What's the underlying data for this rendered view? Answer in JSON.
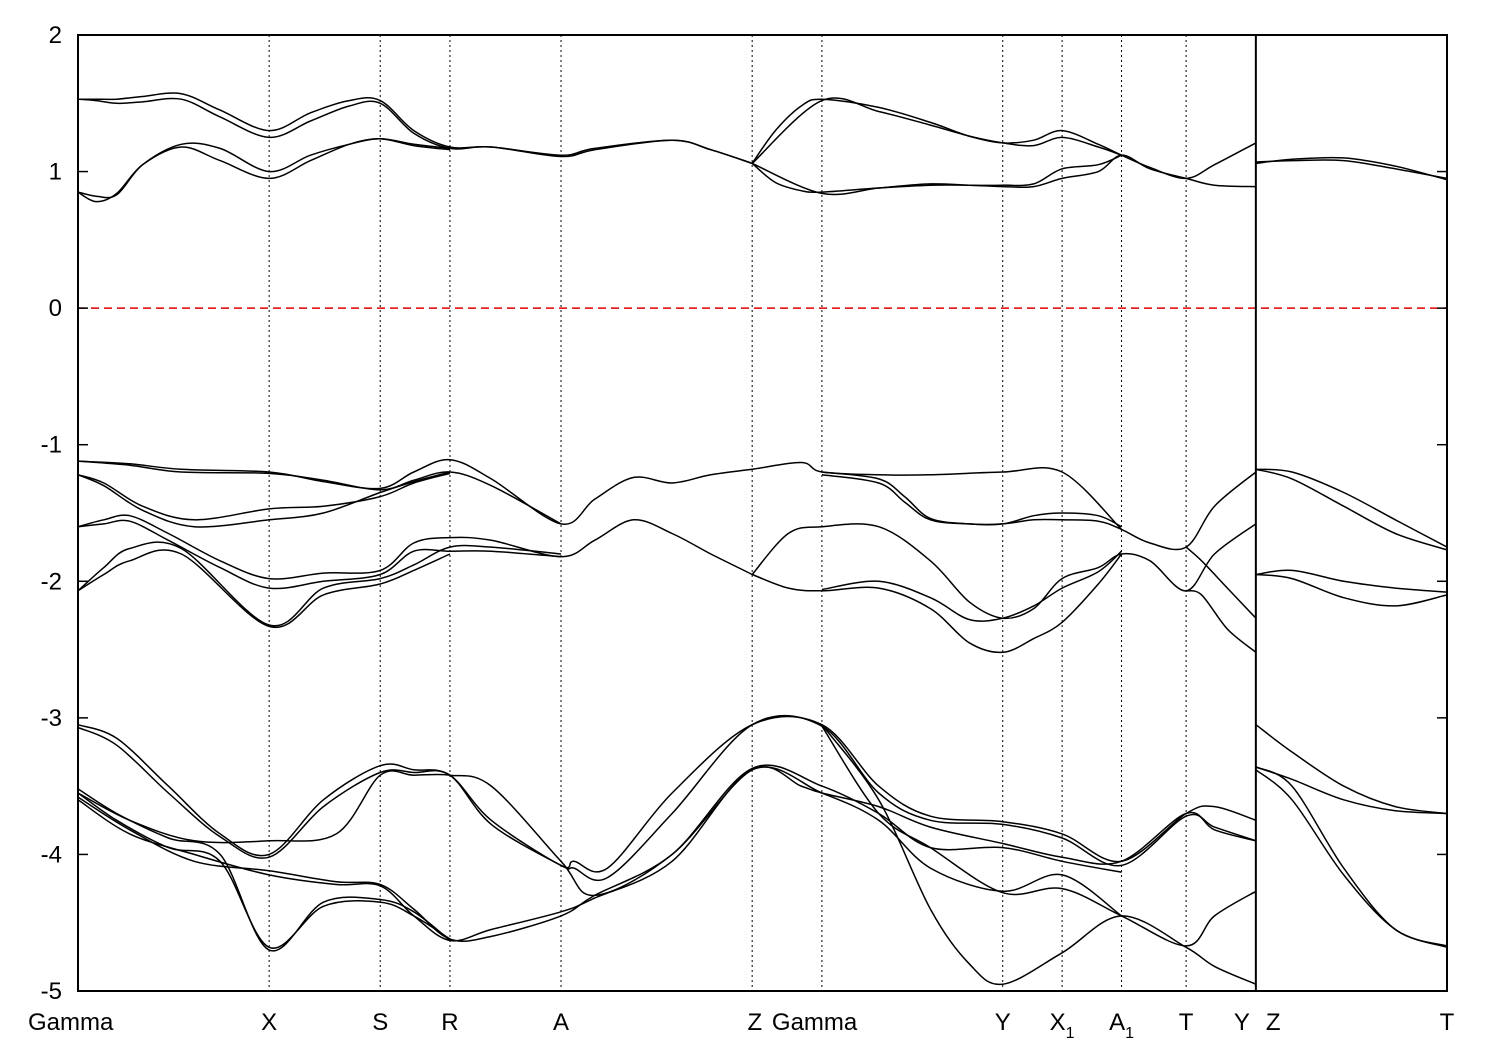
{
  "chart_data": {
    "type": "line",
    "title": "",
    "xlabel": "",
    "ylabel": "",
    "ylim": [
      -5,
      2
    ],
    "y_ticks": [
      "2",
      "1",
      "0",
      "-1",
      "-2",
      "-3",
      "-4",
      "-5"
    ],
    "x_range": [
      0,
      5.3
    ],
    "reference_line": {
      "y": 0,
      "color": "#e00000",
      "style": "dashed"
    },
    "kpoints": [
      {
        "label": "Gamma",
        "sub": "",
        "x": 0.0
      },
      {
        "label": "X",
        "sub": "",
        "x": 0.74
      },
      {
        "label": "S",
        "sub": "",
        "x": 1.17
      },
      {
        "label": "R",
        "sub": "",
        "x": 1.44
      },
      {
        "label": "A",
        "sub": "",
        "x": 1.87
      },
      {
        "label": "Z",
        "sub": "",
        "x": 2.61
      },
      {
        "label": "Gamma",
        "sub": "",
        "x": 2.88
      },
      {
        "label": "Y",
        "sub": "",
        "x": 3.58
      },
      {
        "label": "X",
        "sub": "1",
        "x": 3.81
      },
      {
        "label": "A",
        "sub": "1",
        "x": 4.04
      },
      {
        "label": "T",
        "sub": "",
        "x": 4.29
      },
      {
        "label": "Y",
        "sub": "",
        "x": 4.56
      },
      {
        "label": "T",
        "sub": "",
        "x": 5.3
      }
    ],
    "break_at_x": 4.56,
    "series": [
      {
        "x": [
          0,
          0.07,
          0.15,
          0.25,
          0.4,
          0.55,
          0.74,
          0.9,
          1.05,
          1.17,
          1.3,
          1.44,
          1.6,
          1.87,
          2.0,
          2.3,
          2.45,
          2.61
        ],
        "y": [
          1.53,
          1.53,
          1.53,
          1.55,
          1.57,
          1.45,
          1.3,
          1.43,
          1.52,
          1.52,
          1.3,
          1.18,
          1.18,
          1.12,
          1.17,
          1.23,
          1.16,
          1.06
        ]
      },
      {
        "x": [
          0,
          0.07,
          0.15,
          0.25,
          0.4,
          0.55,
          0.74,
          0.9,
          1.05,
          1.17,
          1.3,
          1.44,
          1.6,
          1.87,
          2.0,
          2.3,
          2.45,
          2.61
        ],
        "y": [
          1.53,
          1.52,
          1.5,
          1.51,
          1.53,
          1.4,
          1.25,
          1.37,
          1.48,
          1.5,
          1.28,
          1.17,
          1.18,
          1.11,
          1.16,
          1.23,
          1.16,
          1.06
        ]
      },
      {
        "x": [
          0,
          0.07,
          0.15,
          0.25,
          0.4,
          0.55,
          0.74,
          0.9,
          1.05,
          1.17,
          1.3,
          1.44
        ],
        "y": [
          0.85,
          0.82,
          0.83,
          1.05,
          1.2,
          1.17,
          1.0,
          1.12,
          1.2,
          1.24,
          1.2,
          1.17
        ]
      },
      {
        "x": [
          0,
          0.07,
          0.15,
          0.25,
          0.4,
          0.55,
          0.74,
          0.9,
          1.05,
          1.17,
          1.3,
          1.44
        ],
        "y": [
          0.85,
          0.78,
          0.84,
          1.05,
          1.18,
          1.08,
          0.95,
          1.08,
          1.2,
          1.24,
          1.19,
          1.16
        ]
      },
      {
        "x": [
          2.61,
          2.7,
          2.8,
          2.88,
          3.1,
          3.3,
          3.45,
          3.58,
          3.7,
          3.81,
          3.95,
          4.04,
          4.15,
          4.29,
          4.4,
          4.56
        ],
        "y": [
          1.06,
          1.3,
          1.48,
          1.53,
          1.47,
          1.36,
          1.26,
          1.21,
          1.23,
          1.3,
          1.2,
          1.12,
          1.03,
          0.95,
          1.05,
          1.21
        ]
      },
      {
        "x": [
          2.61,
          2.7,
          2.8,
          2.88,
          3.1,
          3.3,
          3.45,
          3.58,
          3.7,
          3.81,
          3.95,
          4.04,
          4.15,
          4.29,
          4.4,
          4.56
        ],
        "y": [
          1.06,
          0.92,
          0.86,
          0.85,
          0.88,
          0.9,
          0.9,
          0.89,
          0.89,
          0.95,
          1.0,
          1.12,
          1.02,
          0.95,
          0.9,
          0.89
        ]
      },
      {
        "x": [
          2.61,
          2.88,
          3.1,
          3.3,
          3.45,
          3.58,
          3.7,
          3.81,
          3.95,
          4.04
        ],
        "y": [
          1.06,
          0.84,
          0.88,
          0.91,
          0.9,
          0.9,
          0.91,
          1.02,
          1.05,
          1.12
        ]
      },
      {
        "x": [
          2.61,
          2.88,
          3.1,
          3.3,
          3.45,
          3.58,
          3.7,
          3.81,
          3.95,
          4.04
        ],
        "y": [
          1.06,
          1.52,
          1.44,
          1.34,
          1.26,
          1.21,
          1.19,
          1.25,
          1.18,
          1.12
        ]
      },
      {
        "x": [
          4.56,
          4.7,
          4.9,
          5.1,
          5.3
        ],
        "y": [
          1.07,
          1.08,
          1.08,
          1.02,
          0.95
        ]
      },
      {
        "x": [
          4.56,
          4.7,
          4.9,
          5.1,
          5.3
        ],
        "y": [
          1.06,
          1.09,
          1.1,
          1.04,
          0.94
        ]
      },
      {
        "x": [
          0,
          0.2,
          0.4,
          0.74,
          0.95,
          1.17,
          1.3,
          1.44,
          1.6,
          1.87,
          2.0,
          2.15,
          2.3,
          2.45,
          2.61,
          2.8,
          2.88,
          3.1,
          3.3,
          3.58,
          3.81,
          4.04
        ],
        "y": [
          -1.12,
          -1.14,
          -1.18,
          -1.2,
          -1.27,
          -1.32,
          -1.2,
          -1.11,
          -1.25,
          -1.58,
          -1.4,
          -1.24,
          -1.28,
          -1.22,
          -1.18,
          -1.13,
          -1.2,
          -1.22,
          -1.22,
          -1.2,
          -1.2,
          -1.62
        ]
      },
      {
        "x": [
          0,
          0.2,
          0.4,
          0.74,
          0.95,
          1.17,
          1.3,
          1.44,
          1.6,
          1.87
        ],
        "y": [
          -1.12,
          -1.15,
          -1.2,
          -1.21,
          -1.26,
          -1.33,
          -1.26,
          -1.2,
          -1.3,
          -1.58
        ]
      },
      {
        "x": [
          0,
          0.1,
          0.25,
          0.45,
          0.74,
          0.95,
          1.17,
          1.3,
          1.44
        ],
        "y": [
          -1.22,
          -1.3,
          -1.48,
          -1.6,
          -1.55,
          -1.5,
          -1.35,
          -1.27,
          -1.2
        ]
      },
      {
        "x": [
          0,
          0.1,
          0.25,
          0.45,
          0.74,
          0.95,
          1.17,
          1.3,
          1.44
        ],
        "y": [
          -1.22,
          -1.28,
          -1.45,
          -1.55,
          -1.47,
          -1.45,
          -1.38,
          -1.28,
          -1.21
        ]
      },
      {
        "x": [
          0,
          0.1,
          0.2,
          0.35,
          0.55,
          0.74,
          0.95,
          1.17,
          1.3,
          1.44,
          1.6,
          1.87,
          2.0,
          2.15,
          2.3,
          2.45,
          2.61
        ],
        "y": [
          -1.6,
          -1.55,
          -1.52,
          -1.65,
          -1.85,
          -1.98,
          -1.94,
          -1.92,
          -1.72,
          -1.68,
          -1.7,
          -1.82,
          -1.7,
          -1.55,
          -1.65,
          -1.8,
          -1.95
        ]
      },
      {
        "x": [
          0,
          0.1,
          0.2,
          0.35,
          0.55,
          0.74,
          0.95,
          1.17,
          1.3,
          1.44,
          1.6,
          1.87
        ],
        "y": [
          -1.6,
          -1.58,
          -1.56,
          -1.7,
          -1.9,
          -2.05,
          -2.0,
          -1.95,
          -1.78,
          -1.78,
          -1.78,
          -1.82
        ]
      },
      {
        "x": [
          0,
          0.1,
          0.2,
          0.4,
          0.74,
          0.95,
          1.17,
          1.3,
          1.44,
          1.6,
          1.87
        ],
        "y": [
          -2.07,
          -1.9,
          -1.76,
          -1.76,
          -2.32,
          -2.05,
          -1.98,
          -1.88,
          -1.75,
          -1.75,
          -1.8
        ]
      },
      {
        "x": [
          0,
          0.1,
          0.2,
          0.4,
          0.74,
          0.95,
          1.17,
          1.3,
          1.44
        ],
        "y": [
          -2.07,
          -1.95,
          -1.85,
          -1.8,
          -2.33,
          -2.1,
          -2.02,
          -1.92,
          -1.8
        ]
      },
      {
        "x": [
          2.61,
          2.75,
          2.88,
          3.1,
          3.3,
          3.45,
          3.58,
          3.7,
          3.81,
          3.95,
          4.04,
          4.15,
          4.29,
          4.4,
          4.56
        ],
        "y": [
          -1.95,
          -1.65,
          -1.6,
          -1.6,
          -1.85,
          -2.15,
          -2.27,
          -2.2,
          -1.98,
          -1.9,
          -1.8,
          -1.85,
          -2.07,
          -1.8,
          -1.58
        ]
      },
      {
        "x": [
          2.61,
          2.75,
          2.88,
          3.1,
          3.3,
          3.45,
          3.58,
          3.7,
          3.81,
          3.95,
          4.04
        ],
        "y": [
          -1.95,
          -2.05,
          -2.07,
          -2.05,
          -2.2,
          -2.45,
          -2.52,
          -2.42,
          -2.3,
          -2.02,
          -1.8
        ]
      },
      {
        "x": [
          2.88,
          3.1,
          3.3,
          3.45,
          3.58,
          3.7,
          3.81,
          3.95,
          4.04
        ],
        "y": [
          -2.06,
          -2.0,
          -2.12,
          -2.28,
          -2.27,
          -2.18,
          -2.05,
          -1.93,
          -1.78
        ]
      },
      {
        "x": [
          2.88,
          3.1,
          3.2,
          3.3,
          3.45,
          3.58,
          3.7,
          3.81,
          3.95,
          4.04
        ],
        "y": [
          -1.22,
          -1.28,
          -1.42,
          -1.55,
          -1.58,
          -1.58,
          -1.52,
          -1.5,
          -1.52,
          -1.6
        ]
      },
      {
        "x": [
          2.88,
          3.1,
          3.2,
          3.3,
          3.45,
          3.58,
          3.7,
          3.81,
          3.95,
          4.04,
          4.15,
          4.29,
          4.4,
          4.56
        ],
        "y": [
          -1.2,
          -1.25,
          -1.38,
          -1.54,
          -1.58,
          -1.58,
          -1.55,
          -1.55,
          -1.56,
          -1.62,
          -1.72,
          -1.75,
          -1.45,
          -1.2
        ]
      },
      {
        "x": [
          4.29,
          4.35,
          4.45,
          4.56
        ],
        "y": [
          -1.75,
          -1.85,
          -2.05,
          -2.27
        ]
      },
      {
        "x": [
          4.29,
          4.35,
          4.45,
          4.56
        ],
        "y": [
          -2.07,
          -2.1,
          -2.35,
          -2.52
        ]
      },
      {
        "x": [
          4.56,
          4.7,
          4.9,
          5.1,
          5.3
        ],
        "y": [
          -1.18,
          -1.25,
          -1.45,
          -1.65,
          -1.77
        ]
      },
      {
        "x": [
          4.56,
          4.7,
          4.9,
          5.1,
          5.3
        ],
        "y": [
          -1.18,
          -1.2,
          -1.35,
          -1.55,
          -1.75
        ]
      },
      {
        "x": [
          4.56,
          4.7,
          4.9,
          5.1,
          5.3
        ],
        "y": [
          -1.95,
          -1.92,
          -2.0,
          -2.05,
          -2.08
        ]
      },
      {
        "x": [
          4.56,
          4.7,
          4.9,
          5.1,
          5.3
        ],
        "y": [
          -1.95,
          -1.98,
          -2.12,
          -2.18,
          -2.1
        ]
      },
      {
        "x": [
          0,
          0.15,
          0.35,
          0.55,
          0.74,
          0.95,
          1.17,
          1.3,
          1.44,
          1.6,
          1.87,
          1.92,
          2.05,
          2.3,
          2.61,
          2.88,
          3.1,
          3.3,
          3.58,
          3.81,
          4.04,
          4.29,
          4.4,
          4.56
        ],
        "y": [
          -3.05,
          -3.15,
          -3.5,
          -3.85,
          -4.0,
          -3.6,
          -3.35,
          -3.38,
          -3.42,
          -3.75,
          -4.08,
          -4.05,
          -4.1,
          -3.55,
          -3.05,
          -3.05,
          -3.5,
          -3.72,
          -3.76,
          -3.85,
          -4.05,
          -3.7,
          -3.65,
          -3.75
        ]
      },
      {
        "x": [
          0,
          0.15,
          0.35,
          0.55,
          0.74,
          0.95,
          1.17,
          1.3,
          1.44,
          1.6,
          1.87,
          1.92,
          2.05,
          2.3,
          2.61,
          2.88,
          3.1,
          3.3,
          3.58,
          3.81,
          4.04,
          4.29,
          4.4,
          4.56
        ],
        "y": [
          -3.07,
          -3.2,
          -3.55,
          -3.87,
          -4.02,
          -3.65,
          -3.4,
          -3.4,
          -3.42,
          -3.78,
          -4.08,
          -4.1,
          -4.17,
          -3.7,
          -3.05,
          -3.06,
          -3.55,
          -3.75,
          -3.78,
          -3.88,
          -4.08,
          -3.72,
          -3.8,
          -3.9
        ]
      },
      {
        "x": [
          0,
          0.2,
          0.45,
          0.74,
          1.0,
          1.17,
          1.3,
          1.44,
          1.6,
          1.87,
          2.0,
          2.3,
          2.61,
          2.8,
          2.88,
          3.1,
          3.3,
          3.58,
          3.81,
          4.04,
          4.29,
          4.4,
          4.56
        ],
        "y": [
          -3.55,
          -3.75,
          -3.9,
          -3.9,
          -3.85,
          -3.42,
          -3.42,
          -3.42,
          -3.5,
          -4.05,
          -4.3,
          -4.0,
          -3.38,
          -3.5,
          -3.55,
          -3.65,
          -3.8,
          -3.92,
          -4.02,
          -4.05,
          -3.7,
          -3.82,
          -3.9
        ]
      },
      {
        "x": [
          0,
          0.2,
          0.45,
          0.74,
          1.0,
          1.17,
          1.3,
          1.44,
          1.6,
          1.87,
          2.0,
          2.3,
          2.61,
          2.88,
          3.1,
          3.3,
          3.58,
          3.81,
          4.04
        ],
        "y": [
          -3.58,
          -3.82,
          -4.05,
          -4.12,
          -4.2,
          -4.22,
          -4.4,
          -4.62,
          -4.6,
          -4.45,
          -4.3,
          -4.0,
          -3.37,
          -3.5,
          -3.7,
          -3.95,
          -3.95,
          -4.05,
          -4.13
        ]
      },
      {
        "x": [
          0,
          0.2,
          0.45,
          0.74,
          1.0,
          1.17,
          1.3,
          1.44,
          1.6,
          1.87,
          2.0,
          2.3,
          2.61,
          2.88,
          3.1,
          3.3,
          3.58,
          3.81,
          4.04
        ],
        "y": [
          -3.6,
          -3.85,
          -4.0,
          -4.15,
          -4.22,
          -4.23,
          -4.45,
          -4.63,
          -4.55,
          -4.42,
          -4.32,
          -4.05,
          -3.38,
          -3.55,
          -3.75,
          -4.1,
          -4.27,
          -4.15,
          -4.45
        ]
      },
      {
        "x": [
          0,
          0.15,
          0.35,
          0.55,
          0.74,
          0.95,
          1.17,
          1.3,
          1.44
        ],
        "y": [
          -3.52,
          -3.7,
          -3.88,
          -4.0,
          -4.7,
          -4.35,
          -4.33,
          -4.42,
          -4.63
        ]
      },
      {
        "x": [
          0,
          0.15,
          0.35,
          0.55,
          0.74,
          0.95,
          1.17,
          1.3,
          1.44
        ],
        "y": [
          -3.55,
          -3.75,
          -3.95,
          -4.05,
          -4.68,
          -4.38,
          -4.35,
          -4.45,
          -4.62
        ]
      },
      {
        "x": [
          2.88,
          3.1,
          3.3,
          3.45,
          3.58,
          3.81,
          4.04,
          4.29,
          4.4,
          4.56
        ],
        "y": [
          -3.05,
          -3.6,
          -4.4,
          -4.8,
          -4.95,
          -4.72,
          -4.45,
          -4.68,
          -4.82,
          -4.95
        ]
      },
      {
        "x": [
          2.88,
          3.1,
          3.3,
          3.58,
          3.81,
          4.04,
          4.29,
          4.4,
          4.56
        ],
        "y": [
          -3.06,
          -3.7,
          -3.95,
          -4.28,
          -4.25,
          -4.45,
          -4.67,
          -4.45,
          -4.27
        ]
      },
      {
        "x": [
          4.56,
          4.7,
          4.9,
          5.1,
          5.3
        ],
        "y": [
          -3.05,
          -3.25,
          -3.5,
          -3.65,
          -3.7
        ]
      },
      {
        "x": [
          4.56,
          4.7,
          4.9,
          5.1,
          5.3
        ],
        "y": [
          -3.36,
          -3.45,
          -3.6,
          -3.68,
          -3.7
        ]
      },
      {
        "x": [
          4.56,
          4.7,
          4.9,
          5.1,
          5.3
        ],
        "y": [
          -3.36,
          -3.5,
          -4.1,
          -4.55,
          -4.67
        ]
      },
      {
        "x": [
          4.56,
          4.7,
          4.9,
          5.1,
          5.3
        ],
        "y": [
          -3.38,
          -3.6,
          -4.15,
          -4.55,
          -4.68
        ]
      }
    ]
  }
}
